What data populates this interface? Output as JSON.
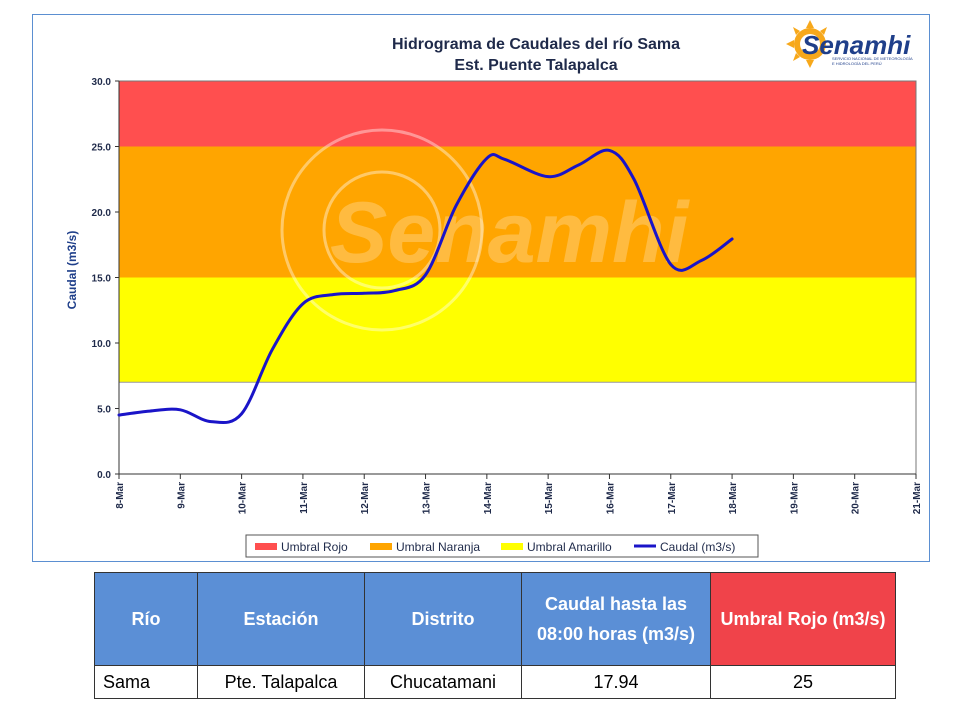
{
  "chart_data": {
    "type": "line",
    "title": "Hidrograma de Caudales del río Sama",
    "subtitle": "Est. Puente Talapalca",
    "ylabel": "Caudal (m3/s)",
    "xlabel": "",
    "ylim": [
      0,
      30
    ],
    "y_ticks": [
      "0.0",
      "5.0",
      "10.0",
      "15.0",
      "20.0",
      "25.0",
      "30.0"
    ],
    "categories": [
      "8-Mar",
      "9-Mar",
      "10-Mar",
      "11-Mar",
      "12-Mar",
      "13-Mar",
      "14-Mar",
      "15-Mar",
      "16-Mar",
      "17-Mar",
      "18-Mar",
      "19-Mar",
      "20-Mar",
      "21-Mar"
    ],
    "thresholds": [
      {
        "name": "Umbral Rojo",
        "from": 25,
        "to": 30,
        "color": "#ff4f4f"
      },
      {
        "name": "Umbral Naranja",
        "from": 15,
        "to": 25,
        "color": "#ffa500"
      },
      {
        "name": "Umbral Amarillo",
        "from": 7,
        "to": 15,
        "color": "#ffff00"
      }
    ],
    "series": [
      {
        "name": "Caudal (m3/s)",
        "color": "#1a14c8",
        "x": [
          0,
          0.5,
          1,
          1.5,
          2,
          2.5,
          3,
          3.5,
          4,
          4.5,
          5,
          5.5,
          6,
          6.3,
          7,
          7.5,
          8,
          8.4,
          9,
          9.5,
          10
        ],
        "values": [
          4.5,
          4.8,
          4.9,
          4.0,
          4.6,
          9.5,
          13.0,
          13.7,
          13.8,
          14.0,
          15.2,
          20.5,
          24.1,
          24.0,
          22.7,
          23.6,
          24.7,
          22.5,
          16.0,
          16.3,
          17.94
        ]
      }
    ],
    "legend_position": "bottom",
    "grid": false
  },
  "logo": {
    "name": "Senamhi",
    "subtitle_line1": "SERVICIO NACIONAL DE METEOROLOGÍA",
    "subtitle_line2": "E HIDROLOGÍA DEL PERÚ"
  },
  "watermark": "Senamhi",
  "table": {
    "headers": [
      "Río",
      "Estación",
      "Distrito",
      "Caudal hasta las 08:00 horas (m3/s)",
      "Umbral  Rojo (m3/s)"
    ],
    "rows": [
      [
        "Sama",
        "Pte. Talapalca",
        "Chucatamani",
        "17.94",
        "25"
      ]
    ]
  }
}
